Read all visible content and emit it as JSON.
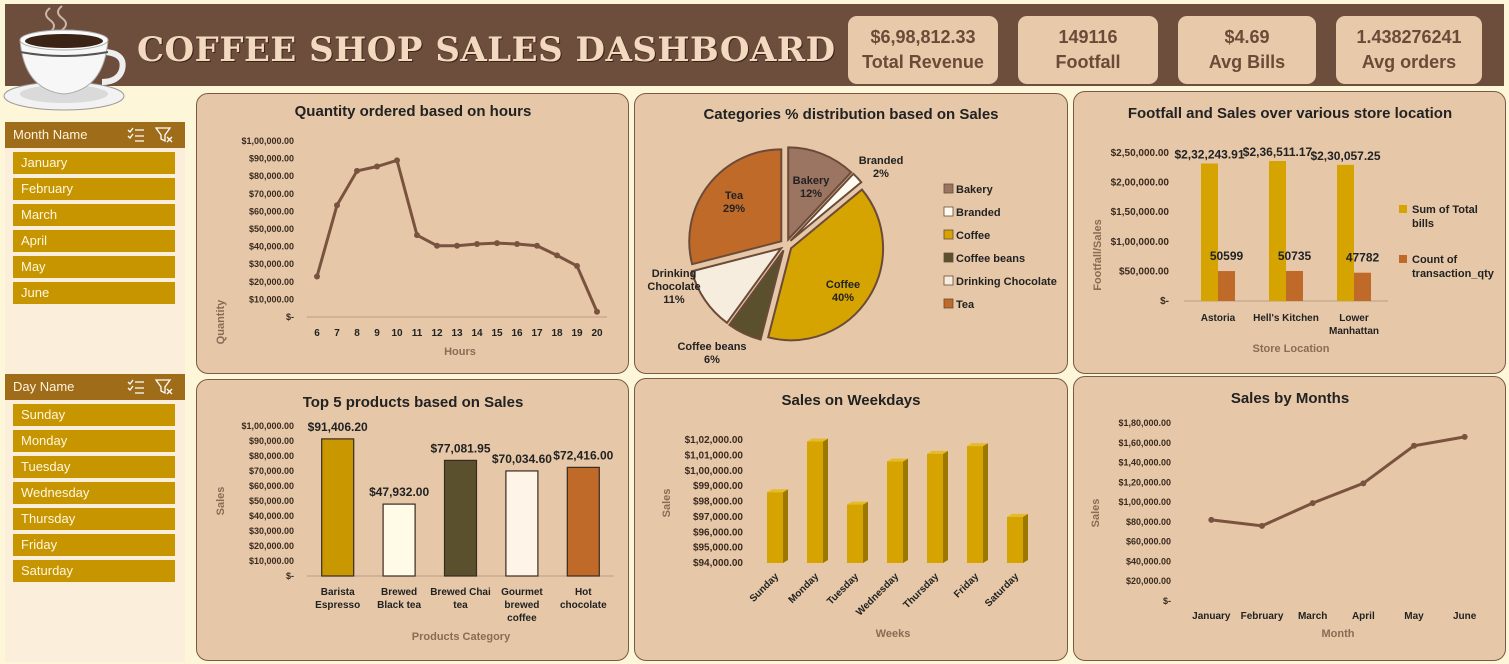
{
  "header": {
    "title": "COFFEE SHOP SALES DASHBOARD"
  },
  "kpis": [
    {
      "value": "$6,98,812.33",
      "label": "Total Revenue"
    },
    {
      "value": "149116",
      "label": "Footfall"
    },
    {
      "value": "$4.69",
      "label": "Avg Bills"
    },
    {
      "value": "1.438276241",
      "label": "Avg orders"
    }
  ],
  "slicers": {
    "month": {
      "title": "Month Name",
      "items": [
        "January",
        "February",
        "March",
        "April",
        "May",
        "June"
      ]
    },
    "day": {
      "title": "Day Name",
      "items": [
        "Sunday",
        "Monday",
        "Tuesday",
        "Wednesday",
        "Thursday",
        "Friday",
        "Saturday"
      ]
    }
  },
  "colors": {
    "header": "#6d4e3d",
    "panel": "#e6c8a8",
    "line": "#7a5340",
    "gold": "#d6a400",
    "orange": "#c06a2a",
    "slicer_item": "#c69500"
  },
  "chart_data": [
    {
      "id": "hours",
      "type": "line",
      "title": "Quantity ordered based on hours",
      "xlabel": "Hours",
      "ylabel": "Quantity",
      "x": [
        6,
        7,
        8,
        9,
        10,
        11,
        12,
        13,
        14,
        15,
        16,
        17,
        18,
        19,
        20
      ],
      "values": [
        23000,
        63500,
        83000,
        85500,
        89000,
        46500,
        40500,
        40500,
        41500,
        42000,
        41500,
        40500,
        35000,
        29000,
        3000
      ],
      "ylim": [
        0,
        100000
      ],
      "yticks": [
        "$-",
        "$10,000.00",
        "$20,000.00",
        "$30,000.00",
        "$40,000.00",
        "$50,000.00",
        "$60,000.00",
        "$70,000.00",
        "$80,000.00",
        "$90,000.00",
        "$1,00,000.00"
      ]
    },
    {
      "id": "categories",
      "type": "pie",
      "title": "Categories % distribution based on Sales",
      "slices": [
        {
          "name": "Bakery",
          "pct": 12,
          "label": "12%",
          "color": "#9b7562"
        },
        {
          "name": "Branded",
          "pct": 2,
          "label": "2%",
          "color": "#fffbf0"
        },
        {
          "name": "Coffee",
          "pct": 40,
          "label": "40%",
          "color": "#d6a400"
        },
        {
          "name": "Coffee beans",
          "pct": 6,
          "label": "6%",
          "color": "#5a502e"
        },
        {
          "name": "Drinking Chocolate",
          "pct": 11,
          "label": "11%",
          "color": "#f6eddf"
        },
        {
          "name": "Tea",
          "pct": 29,
          "label": "29%",
          "color": "#c06a2a"
        }
      ]
    },
    {
      "id": "locations",
      "type": "bar",
      "title": "Footfall and Sales over various store location",
      "xlabel": "Store Location",
      "ylabel": "Footfall/Sales",
      "categories": [
        "Astoria",
        "Hell's Kitchen",
        "Lower Manhattan"
      ],
      "series": [
        {
          "name": "Sum of Total bills",
          "values": [
            232243.91,
            236511.17,
            230057.25
          ],
          "labels": [
            "$2,32,243.91",
            "$2,36,511.17",
            "$2,30,057.25"
          ],
          "color": "#d6a400"
        },
        {
          "name": "Count of transaction_qty",
          "values": [
            50599,
            50735,
            47782
          ],
          "labels": [
            "50599",
            "50735",
            "47782"
          ],
          "color": "#c06a2a"
        }
      ],
      "ylim": [
        0,
        250000
      ],
      "yticks": [
        "$-",
        "$50,000.00",
        "$1,00,000.00",
        "$1,50,000.00",
        "$2,00,000.00",
        "$2,50,000.00"
      ]
    },
    {
      "id": "top5",
      "type": "bar",
      "title": "Top 5 products based on Sales",
      "xlabel": "Products Category",
      "ylabel": "Sales",
      "categories": [
        "Barista Espresso",
        "Brewed Black tea",
        "Brewed Chai tea",
        "Gourmet brewed coffee",
        "Hot chocolate"
      ],
      "values": [
        91406.2,
        47932.0,
        77081.95,
        70034.6,
        72416.0
      ],
      "labels": [
        "$91,406.20",
        "$47,932.00",
        "$77,081.95",
        "$70,034.60",
        "$72,416.00"
      ],
      "colors": [
        "#c99700",
        "#fffbe6",
        "#5a502e",
        "#fff4e8",
        "#c06a2a"
      ],
      "ylim": [
        0,
        100000
      ],
      "yticks": [
        "$-",
        "$10,000.00",
        "$20,000.00",
        "$30,000.00",
        "$40,000.00",
        "$50,000.00",
        "$60,000.00",
        "$70,000.00",
        "$80,000.00",
        "$90,000.00",
        "$1,00,000.00"
      ]
    },
    {
      "id": "weekdays",
      "type": "bar",
      "title": "Sales on Weekdays",
      "xlabel": "Weeks",
      "ylabel": "Sales",
      "categories": [
        "Sunday",
        "Monday",
        "Tuesday",
        "Wednesday",
        "Thursday",
        "Friday",
        "Saturday"
      ],
      "values": [
        98600,
        101900,
        97800,
        100600,
        101100,
        101600,
        97000
      ],
      "ylim": [
        94000,
        102000
      ],
      "yticks": [
        "$94,000.00",
        "$95,000.00",
        "$96,000.00",
        "$97,000.00",
        "$98,000.00",
        "$99,000.00",
        "$1,00,000.00",
        "$1,01,000.00",
        "$1,02,000.00"
      ]
    },
    {
      "id": "months",
      "type": "line",
      "title": "Sales by Months",
      "xlabel": "Month",
      "ylabel": "Sales",
      "x": [
        "January",
        "February",
        "March",
        "April",
        "May",
        "June"
      ],
      "values": [
        82000,
        76000,
        99000,
        119000,
        157000,
        166000
      ],
      "ylim": [
        0,
        180000
      ],
      "yticks": [
        "$-",
        "$20,000.00",
        "$40,000.00",
        "$60,000.00",
        "$80,000.00",
        "$1,00,000.00",
        "$1,20,000.00",
        "$1,40,000.00",
        "$1,60,000.00",
        "$1,80,000.00"
      ]
    }
  ]
}
